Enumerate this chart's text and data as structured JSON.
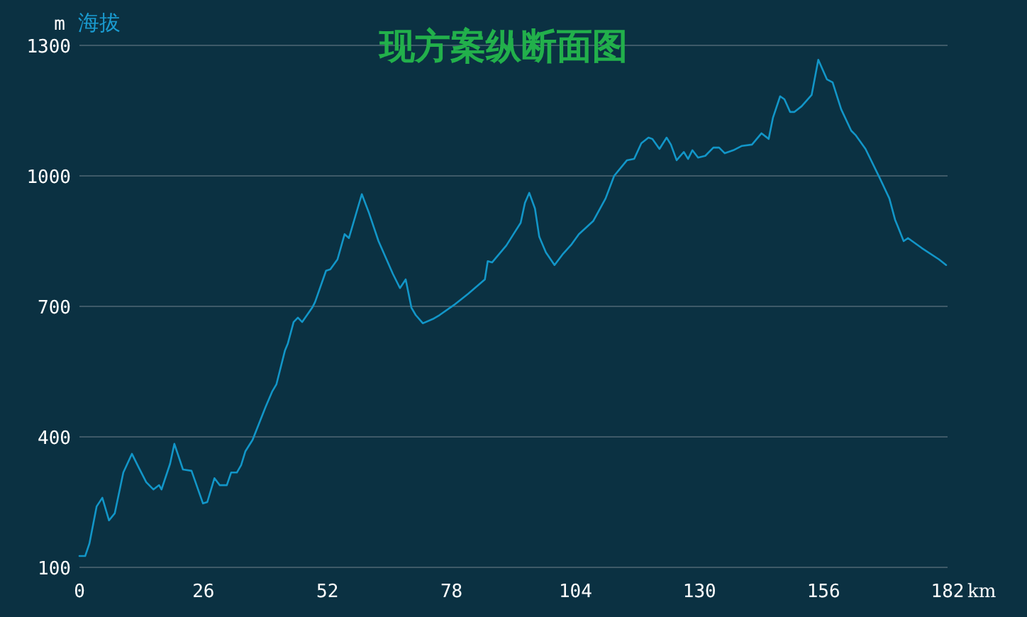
{
  "chart_data": {
    "type": "line",
    "title": "现方案纵断面图",
    "ylabel": "m 海拔",
    "xlabel": "km",
    "xlim": [
      0,
      182
    ],
    "xticks": [
      0,
      26,
      52,
      78,
      104,
      130,
      156,
      182
    ],
    "ylim": [
      100,
      1300
    ],
    "yticks": [
      100,
      400,
      700,
      1000,
      1300
    ],
    "grid": "y",
    "series": [
      {
        "color": "#1296c8",
        "x": [
          0,
          1.2,
          2.1,
          3.6,
          4.8,
          6.2,
          7.4,
          9.2,
          11.0,
          12.5,
          14.0,
          15.5,
          16.7,
          17.2,
          19.0,
          19.9,
          21.7,
          23.5,
          25.9,
          26.8,
          28.3,
          29.4,
          30.9,
          31.8,
          33.0,
          33.9,
          34.8,
          36.3,
          39.0,
          40.4,
          41.3,
          43.1,
          43.7,
          44.9,
          45.8,
          46.7,
          48.8,
          49.4,
          51.7,
          52.6,
          54.1,
          55.6,
          56.5,
          59.2,
          60.7,
          62.7,
          65.7,
          67.2,
          68.4,
          69.6,
          70.5,
          72.0,
          74.1,
          75.5,
          78.5,
          81.5,
          85.0,
          85.6,
          86.5,
          89.5,
          91.0,
          92.5,
          93.4,
          94.3,
          95.5,
          96.4,
          97.8,
          99.6,
          101.4,
          103.2,
          104.7,
          107.7,
          110.3,
          112.1,
          114.8,
          116.3,
          117.8,
          119.3,
          120.1,
          121.6,
          123.1,
          124.0,
          125.2,
          126.7,
          127.6,
          128.5,
          129.7,
          131.2,
          132.9,
          134.1,
          135.3,
          137.1,
          138.9,
          141.0,
          143.0,
          144.5,
          145.4,
          146.9,
          147.8,
          149.0,
          149.9,
          151.4,
          153.5,
          154.9,
          156.7,
          157.9,
          159.7,
          161.8,
          162.7,
          164.8,
          167.7,
          169.8,
          171.0,
          171.6,
          172.8,
          173.7,
          176.6,
          180.2,
          181.7
        ],
        "values": [
          126,
          126,
          155,
          240,
          260,
          208,
          224,
          318,
          361,
          328,
          296,
          279,
          289,
          279,
          338,
          384,
          325,
          322,
          247,
          250,
          305,
          289,
          289,
          318,
          318,
          335,
          367,
          393,
          468,
          504,
          521,
          599,
          615,
          664,
          674,
          664,
          697,
          710,
          782,
          785,
          808,
          866,
          857,
          958,
          915,
          850,
          775,
          742,
          762,
          697,
          680,
          661,
          671,
          680,
          703,
          729,
          762,
          804,
          801,
          840,
          866,
          892,
          938,
          961,
          925,
          860,
          824,
          795,
          821,
          843,
          866,
          896,
          948,
          1000,
          1036,
          1039,
          1075,
          1088,
          1085,
          1062,
          1088,
          1072,
          1036,
          1055,
          1039,
          1059,
          1042,
          1046,
          1065,
          1065,
          1052,
          1059,
          1069,
          1072,
          1098,
          1085,
          1134,
          1183,
          1176,
          1147,
          1147,
          1160,
          1186,
          1267,
          1222,
          1215,
          1153,
          1104,
          1094,
          1062,
          997,
          948,
          899,
          883,
          850,
          857,
          834,
          808,
          795
        ]
      }
    ]
  }
}
